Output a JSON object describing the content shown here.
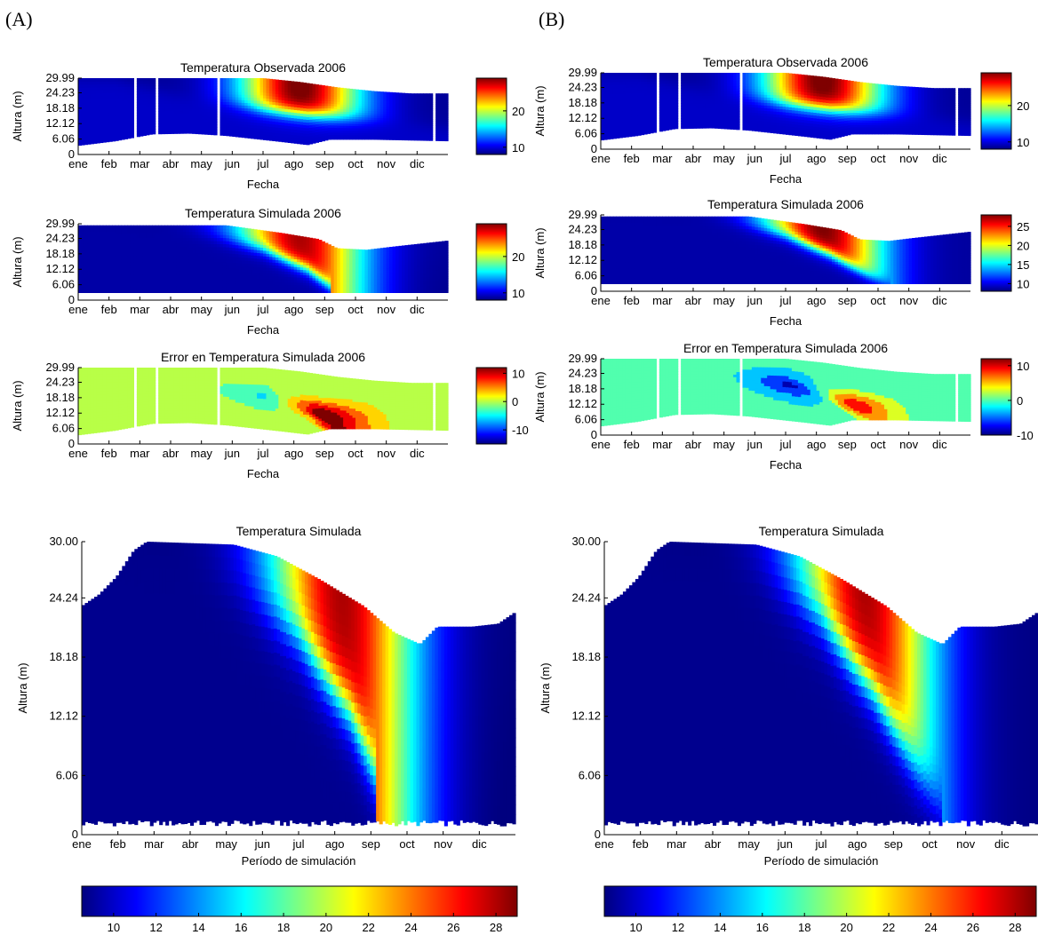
{
  "colormap_stops": [
    "#00007f",
    "#0000ff",
    "#007fff",
    "#00ffff",
    "#7fff7f",
    "#ffff00",
    "#ff7f00",
    "#ff0000",
    "#7f0000"
  ],
  "panels": [
    {
      "label": "(A)"
    },
    {
      "label": "(B)"
    }
  ],
  "chart_data": [
    {
      "id": "A1",
      "type": "heatmap",
      "panel": "A",
      "title": "Temperatura Observada 2006",
      "xlabel": "Fecha",
      "ylabel": "Altura (m)",
      "x_ticks": [
        "ene",
        "feb",
        "mar",
        "abr",
        "may",
        "jun",
        "jul",
        "ago",
        "sep",
        "oct",
        "nov",
        "dic"
      ],
      "y_ticks": [
        "0",
        "6.06",
        "12.12",
        "18.18",
        "24.23",
        "29.99"
      ],
      "ylim": [
        0,
        29.99
      ],
      "clim": [
        8,
        29
      ],
      "colorbar_ticks": [
        "10",
        "20"
      ]
    },
    {
      "id": "A2",
      "type": "heatmap",
      "panel": "A",
      "title": "Temperatura Simulada 2006",
      "xlabel": "Fecha",
      "ylabel": "Altura (m)",
      "x_ticks": [
        "ene",
        "feb",
        "mar",
        "abr",
        "may",
        "jun",
        "jul",
        "ago",
        "sep",
        "oct",
        "nov",
        "dic"
      ],
      "y_ticks": [
        "0",
        "6.06",
        "12.12",
        "18.18",
        "24.23",
        "29.99"
      ],
      "ylim": [
        0,
        29.99
      ],
      "clim": [
        8,
        29
      ],
      "colorbar_ticks": [
        "10",
        "20"
      ]
    },
    {
      "id": "A3",
      "type": "heatmap",
      "panel": "A",
      "title": "Error en Temperatura Simulada 2006",
      "xlabel": "Fecha",
      "ylabel": "Altura (m)",
      "x_ticks": [
        "ene",
        "feb",
        "mar",
        "abr",
        "may",
        "jun",
        "jul",
        "ago",
        "sep",
        "oct",
        "nov",
        "dic"
      ],
      "y_ticks": [
        "0",
        "6.06",
        "12.12",
        "18.18",
        "24.23",
        "29.99"
      ],
      "ylim": [
        0,
        29.99
      ],
      "clim": [
        -15,
        12
      ],
      "colorbar_ticks": [
        "10",
        "0",
        "-10"
      ]
    },
    {
      "id": "A4",
      "type": "heatmap",
      "panel": "A",
      "title": "Temperatura Simulada",
      "xlabel": "Período de simulación",
      "ylabel": "Altura (m)",
      "x_ticks": [
        "ene",
        "feb",
        "mar",
        "abr",
        "may",
        "jun",
        "jul",
        "ago",
        "sep",
        "oct",
        "nov",
        "dic"
      ],
      "y_ticks": [
        "0",
        "6.06",
        "12.12",
        "18.18",
        "24.24",
        "30.00"
      ],
      "ylim": [
        0,
        30
      ],
      "clim": [
        8.5,
        29
      ],
      "colorbar_ticks": [
        "10",
        "12",
        "14",
        "16",
        "18",
        "20",
        "22",
        "24",
        "26",
        "28"
      ]
    },
    {
      "id": "B1",
      "type": "heatmap",
      "panel": "B",
      "title": "Temperatura Observada 2006",
      "xlabel": "Fecha",
      "ylabel": "Altura (m)",
      "x_ticks": [
        "ene",
        "feb",
        "mar",
        "abr",
        "may",
        "jun",
        "jul",
        "ago",
        "sep",
        "oct",
        "nov",
        "dic"
      ],
      "y_ticks": [
        "0",
        "6.06",
        "12.12",
        "18.18",
        "24.23",
        "29.99"
      ],
      "ylim": [
        0,
        29.99
      ],
      "clim": [
        8,
        29
      ],
      "colorbar_ticks": [
        "10",
        "20"
      ]
    },
    {
      "id": "B2",
      "type": "heatmap",
      "panel": "B",
      "title": "Temperatura Simulada 2006",
      "xlabel": "Fecha",
      "ylabel": "Altura (m)",
      "x_ticks": [
        "ene",
        "feb",
        "mar",
        "abr",
        "may",
        "jun",
        "jul",
        "ago",
        "sep",
        "oct",
        "nov",
        "dic"
      ],
      "y_ticks": [
        "0",
        "6.06",
        "12.12",
        "18.18",
        "24.23",
        "29.99"
      ],
      "ylim": [
        0,
        29.99
      ],
      "clim": [
        8,
        28
      ],
      "colorbar_ticks": [
        "10",
        "15",
        "20",
        "25"
      ]
    },
    {
      "id": "B3",
      "type": "heatmap",
      "panel": "B",
      "title": "Error en Temperatura Simulada 2006",
      "xlabel": "Fecha",
      "ylabel": "Altura (m)",
      "x_ticks": [
        "ene",
        "feb",
        "mar",
        "abr",
        "may",
        "jun",
        "jul",
        "ago",
        "sep",
        "oct",
        "nov",
        "dic"
      ],
      "y_ticks": [
        "0",
        "6.06",
        "12.12",
        "18.18",
        "24.23",
        "29.99"
      ],
      "ylim": [
        0,
        29.99
      ],
      "clim": [
        -10,
        12
      ],
      "colorbar_ticks": [
        "10",
        "0",
        "-10"
      ]
    },
    {
      "id": "B4",
      "type": "heatmap",
      "panel": "B",
      "title": "Temperatura Simulada",
      "xlabel": "Período de simulación",
      "ylabel": "Altura (m)",
      "x_ticks": [
        "ene",
        "feb",
        "mar",
        "abr",
        "may",
        "jun",
        "jul",
        "ago",
        "sep",
        "oct",
        "nov",
        "dic"
      ],
      "y_ticks": [
        "0",
        "6.06",
        "12.12",
        "18.18",
        "24.24",
        "30.00"
      ],
      "ylim": [
        0,
        30
      ],
      "clim": [
        8.5,
        29
      ],
      "colorbar_ticks": [
        "10",
        "12",
        "14",
        "16",
        "18",
        "20",
        "22",
        "24",
        "26",
        "28"
      ]
    }
  ]
}
